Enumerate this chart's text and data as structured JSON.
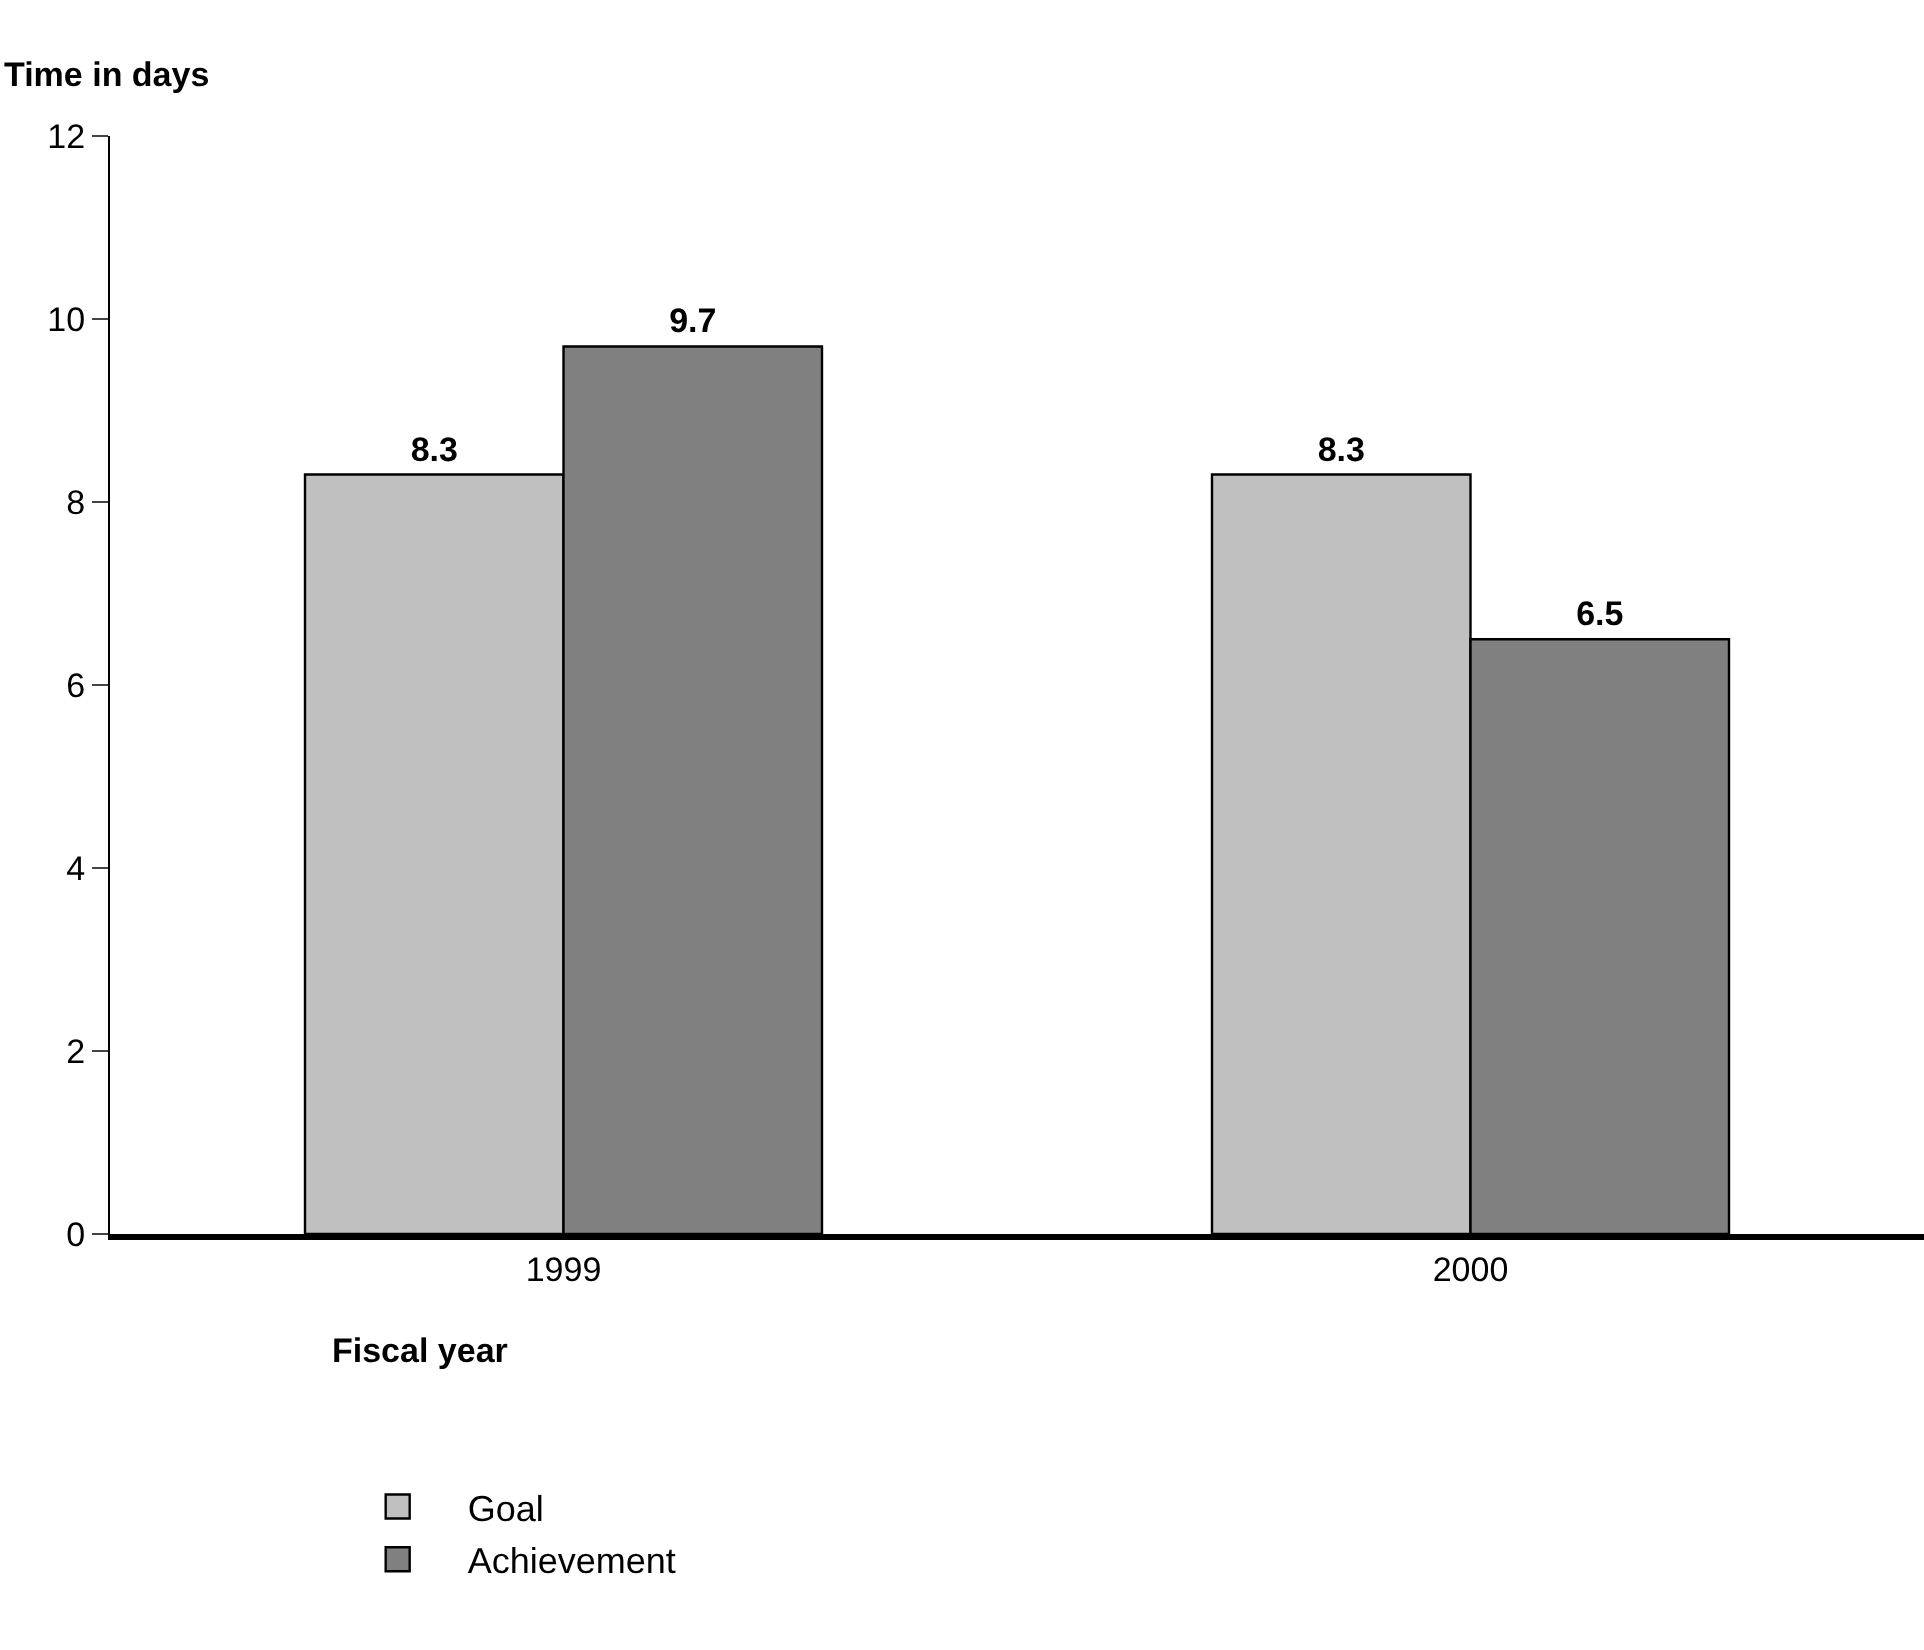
{
  "chart_data": {
    "type": "bar",
    "xlabel": "Fiscal year",
    "ylabel": "Time in days",
    "categories": [
      "1999",
      "2000"
    ],
    "series": [
      {
        "name": "Goal",
        "color": "#c0c0c0",
        "values": [
          8.3,
          8.3
        ]
      },
      {
        "name": "Achievement",
        "color": "#808080",
        "values": [
          9.7,
          6.5
        ]
      }
    ],
    "ylim": [
      0,
      12
    ],
    "yticks": [
      0,
      2,
      4,
      6,
      8,
      10,
      12
    ],
    "grid": false,
    "data_labels": true,
    "legend": "bottom left"
  }
}
